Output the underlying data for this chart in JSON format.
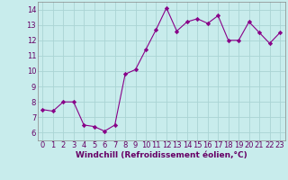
{
  "x": [
    0,
    1,
    2,
    3,
    4,
    5,
    6,
    7,
    8,
    9,
    10,
    11,
    12,
    13,
    14,
    15,
    16,
    17,
    18,
    19,
    20,
    21,
    22,
    23
  ],
  "y": [
    7.5,
    7.4,
    8.0,
    8.0,
    6.5,
    6.4,
    6.1,
    6.5,
    9.8,
    10.1,
    11.4,
    12.7,
    14.1,
    12.6,
    13.2,
    13.4,
    13.1,
    13.6,
    12.0,
    12.0,
    13.2,
    12.5,
    11.8,
    12.5
  ],
  "line_color": "#880088",
  "marker": "D",
  "marker_size": 2.2,
  "bg_color": "#c8ecec",
  "grid_color": "#aad4d4",
  "xlabel": "Windchill (Refroidissement éolien,°C)",
  "xlabel_fontsize": 6.5,
  "tick_fontsize": 6.0,
  "xlim": [
    -0.5,
    23.5
  ],
  "ylim": [
    5.5,
    14.5
  ],
  "yticks": [
    6,
    7,
    8,
    9,
    10,
    11,
    12,
    13,
    14
  ],
  "xticks": [
    0,
    1,
    2,
    3,
    4,
    5,
    6,
    7,
    8,
    9,
    10,
    11,
    12,
    13,
    14,
    15,
    16,
    17,
    18,
    19,
    20,
    21,
    22,
    23
  ]
}
